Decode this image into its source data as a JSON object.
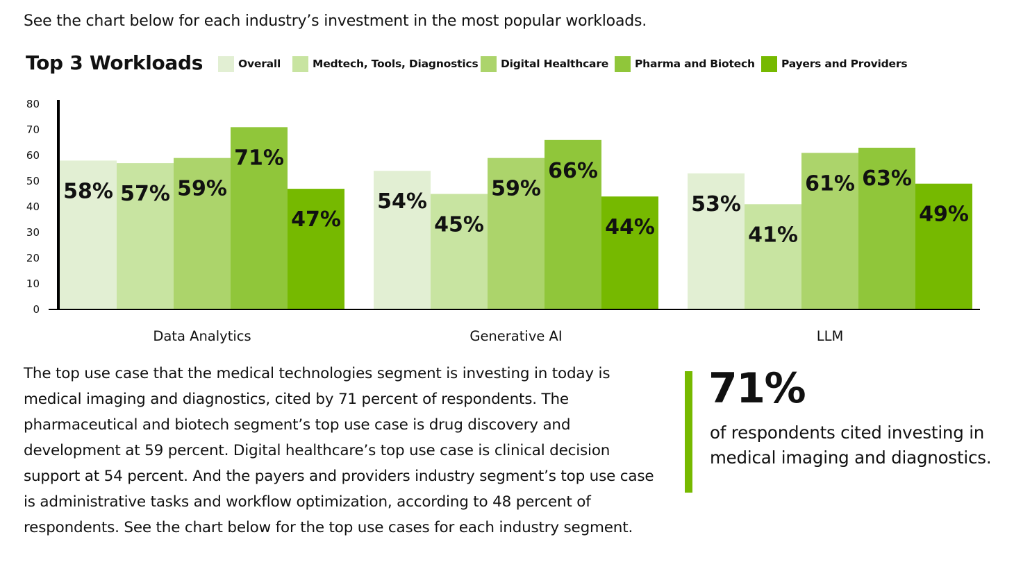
{
  "intro_text": "See the chart below for each industry’s investment in the most popular workloads.",
  "chart_data": {
    "type": "bar",
    "title": "Top 3 Workloads",
    "categories": [
      "Data Analytics",
      "Generative AI",
      "LLM"
    ],
    "series": [
      {
        "name": "Overall",
        "color": "#e2efd3",
        "values": [
          58,
          54,
          53
        ]
      },
      {
        "name": "Medtech, Tools, Diagnostics",
        "color": "#c8e4a1",
        "values": [
          57,
          45,
          41
        ]
      },
      {
        "name": "Digital Healthcare",
        "color": "#acd46b",
        "values": [
          59,
          59,
          61
        ]
      },
      {
        "name": "Pharma and Biotech",
        "color": "#90c63a",
        "values": [
          71,
          66,
          63
        ]
      },
      {
        "name": "Payers and Providers",
        "color": "#76b900",
        "values": [
          47,
          44,
          49
        ]
      }
    ],
    "ylim": [
      0,
      80
    ],
    "yticks": [
      0,
      10,
      20,
      30,
      40,
      50,
      60,
      70,
      80
    ],
    "value_suffix": "%",
    "xlabel": "",
    "ylabel": "",
    "legend_position": "top"
  },
  "body_text": "The top use case that the medical technologies segment is investing in today is medical imaging and diagnostics, cited by 71 percent of respondents. The pharmaceutical and biotech segment’s top use case is drug discovery and development at 59 percent. Digital healthcare’s top use case is clinical decision support at 54 percent. And the payers and providers industry segment’s top use case is administrative tasks and workflow optimization, according to 48 percent of respondents. See the chart below for the top use cases for each industry segment.",
  "stat": {
    "value": "71%",
    "text": "of respondents cited investing in medical imaging and diagnostics.",
    "accent_color": "#76b900"
  }
}
